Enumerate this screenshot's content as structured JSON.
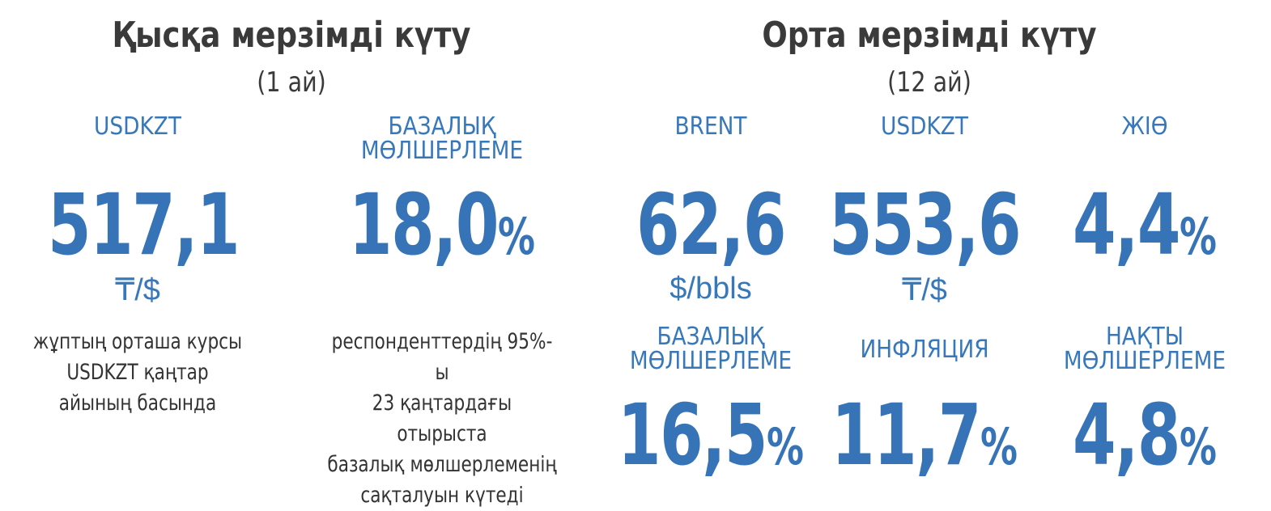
{
  "short_term": {
    "title": "Қысқа мерзімді күту",
    "subtitle": "(1 ай)",
    "usdkzt": {
      "label": "USDKZT",
      "value": "517,1",
      "unit": "₸/$",
      "note_lines": [
        "жұптың орташа курсы",
        "USDKZT қаңтар",
        "айының басында"
      ]
    },
    "base_rate": {
      "label_lines": [
        "БАЗАЛЫҚ",
        "МӨЛШЕРЛЕМЕ"
      ],
      "value": "18,0",
      "unit": "%",
      "note_lines": [
        "респонденттердің 95%-ы",
        "23 қаңтардағы отырыста",
        "базалық мөлшерлеменің",
        "сақталуын күтеді"
      ]
    }
  },
  "mid_term": {
    "title": "Орта мерзімді күту",
    "subtitle": "(12 ай)",
    "brent": {
      "label": "BRENT",
      "value": "62,6",
      "unit": "$/bbls"
    },
    "usdkzt": {
      "label": "USDKZT",
      "value": "553,6",
      "unit": "₸/$"
    },
    "gdp": {
      "label": "ЖІӨ",
      "value": "4,4",
      "unit": "%"
    },
    "base_rate": {
      "label_lines": [
        "БАЗАЛЫҚ",
        "МӨЛШЕРЛЕМЕ"
      ],
      "value": "16,5",
      "unit": "%"
    },
    "inflation": {
      "label": "ИНФЛЯЦИЯ",
      "value": "11,7",
      "unit": "%"
    },
    "real_rate": {
      "label_lines": [
        "НАҚТЫ",
        "МӨЛШЕРЛЕМЕ"
      ],
      "value": "4,8",
      "unit": "%"
    }
  },
  "colors": {
    "accent": "#3674b7",
    "heading": "#3a3a3a",
    "text": "#333333"
  }
}
